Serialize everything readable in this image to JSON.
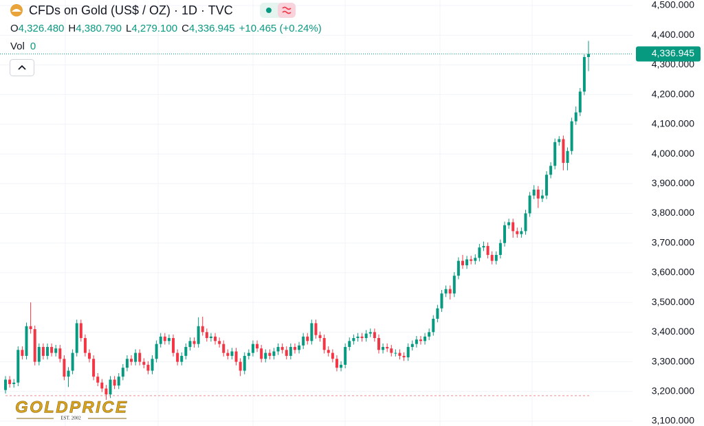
{
  "chart_data": {
    "type": "candlestick",
    "title": "CFDs on Gold (US$ / OZ) · 1D · TVC",
    "ohlc_legend": [
      {
        "key": "O",
        "text": "4,326.480"
      },
      {
        "key": "H",
        "text": "4,380.790"
      },
      {
        "key": "L",
        "text": "4,279.100"
      },
      {
        "key": "C",
        "text": "4,336.945"
      }
    ],
    "change": "+10.465 (+0.24%)",
    "volume": {
      "key": "Vol",
      "text": "0"
    },
    "price_tag": {
      "value": 4336.945,
      "label": "4,336.945"
    },
    "reference_line": 3186,
    "up_color": "#089981",
    "down_color": "#f23645",
    "logo": {
      "name": "GOLDPRICE",
      "est": "EST. 2002"
    },
    "ylim": [
      3100,
      4500
    ],
    "yticks": [
      {
        "value": 3100,
        "label": "3,100.000"
      },
      {
        "value": 3200,
        "label": "3,200.000"
      },
      {
        "value": 3300,
        "label": "3,300.000"
      },
      {
        "value": 3400,
        "label": "3,400.000"
      },
      {
        "value": 3500,
        "label": "3,500.000"
      },
      {
        "value": 3600,
        "label": "3,600.000"
      },
      {
        "value": 3700,
        "label": "3,700.000"
      },
      {
        "value": 3800,
        "label": "3,800.000"
      },
      {
        "value": 3900,
        "label": "3,900.000"
      },
      {
        "value": 4000,
        "label": "4,000.000"
      },
      {
        "value": 4100,
        "label": "4,100.000"
      },
      {
        "value": 4200,
        "label": "4,200.000"
      },
      {
        "value": 4300,
        "label": "4,300.000"
      },
      {
        "value": 4400,
        "label": "4,400.000"
      },
      {
        "value": 4500,
        "label": "4,500.000"
      }
    ],
    "grid": true,
    "open": [
      3205,
      3240,
      3225,
      3230,
      3340,
      3320,
      3420,
      3410,
      3300,
      3350,
      3320,
      3350,
      3330,
      3345,
      3310,
      3250,
      3270,
      3330,
      3430,
      3380,
      3330,
      3310,
      3250,
      3230,
      3210,
      3190,
      3240,
      3220,
      3250,
      3280,
      3310,
      3300,
      3330,
      3300,
      3290,
      3270,
      3310,
      3360,
      3385,
      3370,
      3380,
      3330,
      3300,
      3320,
      3350,
      3370,
      3360,
      3420,
      3400,
      3380,
      3385,
      3370,
      3360,
      3330,
      3320,
      3335,
      3300,
      3270,
      3320,
      3330,
      3360,
      3345,
      3310,
      3330,
      3320,
      3335,
      3350,
      3340,
      3320,
      3350,
      3340,
      3355,
      3385,
      3370,
      3430,
      3390,
      3380,
      3340,
      3330,
      3310,
      3280,
      3290,
      3350,
      3370,
      3380,
      3385,
      3380,
      3395,
      3400,
      3380,
      3340,
      3350,
      3345,
      3330,
      3330,
      3320,
      3315,
      3350,
      3360,
      3375,
      3370,
      3385,
      3400,
      3445,
      3480,
      3530,
      3545,
      3530,
      3590,
      3640,
      3625,
      3645,
      3640,
      3650,
      3685,
      3690,
      3660,
      3640,
      3660,
      3700,
      3760,
      3770,
      3740,
      3730,
      3740,
      3800,
      3860,
      3880,
      3850,
      3860,
      3930,
      3960,
      4040,
      4050,
      3970,
      4010,
      4110,
      4140,
      4210,
      4326.48
    ],
    "high": [
      3252,
      3252,
      3242,
      3352,
      3352,
      3432,
      3500,
      3422,
      3362,
      3362,
      3362,
      3362,
      3357,
      3357,
      3322,
      3282,
      3342,
      3442,
      3442,
      3392,
      3342,
      3322,
      3262,
      3242,
      3222,
      3252,
      3252,
      3262,
      3292,
      3322,
      3322,
      3342,
      3342,
      3312,
      3302,
      3322,
      3372,
      3397,
      3397,
      3392,
      3392,
      3342,
      3332,
      3362,
      3382,
      3382,
      3450,
      3452,
      3412,
      3397,
      3397,
      3382,
      3372,
      3342,
      3347,
      3347,
      3312,
      3332,
      3342,
      3372,
      3372,
      3357,
      3342,
      3342,
      3347,
      3362,
      3362,
      3352,
      3362,
      3362,
      3367,
      3397,
      3397,
      3442,
      3442,
      3402,
      3392,
      3352,
      3342,
      3322,
      3302,
      3362,
      3382,
      3392,
      3397,
      3397,
      3407,
      3412,
      3412,
      3392,
      3362,
      3362,
      3357,
      3342,
      3342,
      3332,
      3362,
      3372,
      3387,
      3387,
      3397,
      3412,
      3457,
      3492,
      3542,
      3557,
      3557,
      3602,
      3652,
      3660,
      3657,
      3657,
      3662,
      3697,
      3705,
      3702,
      3672,
      3672,
      3712,
      3772,
      3782,
      3782,
      3752,
      3752,
      3812,
      3872,
      3895,
      3892,
      3880,
      3942,
      3972,
      4052,
      4060,
      4062,
      4022,
      4122,
      4160,
      4222,
      4335,
      4380.79
    ],
    "low": [
      3193,
      3213,
      3213,
      3218,
      3308,
      3308,
      3395,
      3288,
      3288,
      3308,
      3308,
      3318,
      3318,
      3298,
      3238,
      3215,
      3258,
      3318,
      3368,
      3318,
      3298,
      3238,
      3218,
      3198,
      3172,
      3178,
      3208,
      3208,
      3238,
      3268,
      3288,
      3288,
      3288,
      3278,
      3258,
      3258,
      3298,
      3348,
      3358,
      3358,
      3318,
      3288,
      3288,
      3308,
      3338,
      3348,
      3348,
      3388,
      3368,
      3368,
      3358,
      3348,
      3318,
      3308,
      3308,
      3288,
      3252,
      3258,
      3308,
      3318,
      3333,
      3298,
      3298,
      3308,
      3308,
      3323,
      3328,
      3308,
      3308,
      3328,
      3328,
      3343,
      3358,
      3358,
      3378,
      3368,
      3328,
      3318,
      3298,
      3268,
      3268,
      3278,
      3338,
      3358,
      3368,
      3368,
      3368,
      3383,
      3368,
      3328,
      3328,
      3333,
      3318,
      3318,
      3308,
      3303,
      3303,
      3338,
      3348,
      3358,
      3358,
      3373,
      3388,
      3433,
      3468,
      3518,
      3510,
      3518,
      3578,
      3613,
      3613,
      3628,
      3628,
      3638,
      3673,
      3648,
      3628,
      3628,
      3648,
      3688,
      3748,
      3718,
      3718,
      3718,
      3728,
      3788,
      3848,
      3818,
      3838,
      3848,
      3918,
      3948,
      4028,
      3945,
      3945,
      3998,
      4098,
      4128,
      4198,
      4279.1
    ],
    "close": [
      3240,
      3225,
      3230,
      3340,
      3320,
      3420,
      3410,
      3300,
      3350,
      3320,
      3350,
      3330,
      3345,
      3310,
      3250,
      3270,
      3330,
      3430,
      3380,
      3330,
      3310,
      3250,
      3230,
      3210,
      3190,
      3240,
      3220,
      3250,
      3280,
      3310,
      3300,
      3330,
      3300,
      3290,
      3270,
      3310,
      3360,
      3385,
      3370,
      3380,
      3330,
      3300,
      3320,
      3350,
      3370,
      3360,
      3420,
      3400,
      3380,
      3385,
      3370,
      3360,
      3330,
      3320,
      3335,
      3300,
      3270,
      3320,
      3330,
      3360,
      3345,
      3310,
      3330,
      3320,
      3335,
      3350,
      3340,
      3320,
      3350,
      3340,
      3355,
      3385,
      3370,
      3430,
      3390,
      3380,
      3340,
      3330,
      3310,
      3280,
      3290,
      3350,
      3370,
      3380,
      3385,
      3380,
      3395,
      3400,
      3380,
      3340,
      3350,
      3345,
      3330,
      3330,
      3320,
      3315,
      3350,
      3360,
      3375,
      3370,
      3385,
      3400,
      3445,
      3480,
      3530,
      3545,
      3530,
      3590,
      3640,
      3625,
      3645,
      3640,
      3650,
      3685,
      3690,
      3660,
      3640,
      3660,
      3700,
      3760,
      3770,
      3740,
      3730,
      3740,
      3800,
      3860,
      3880,
      3850,
      3860,
      3930,
      3960,
      4040,
      4050,
      3970,
      4010,
      4110,
      4140,
      4210,
      4326.48,
      4336.945
    ]
  }
}
